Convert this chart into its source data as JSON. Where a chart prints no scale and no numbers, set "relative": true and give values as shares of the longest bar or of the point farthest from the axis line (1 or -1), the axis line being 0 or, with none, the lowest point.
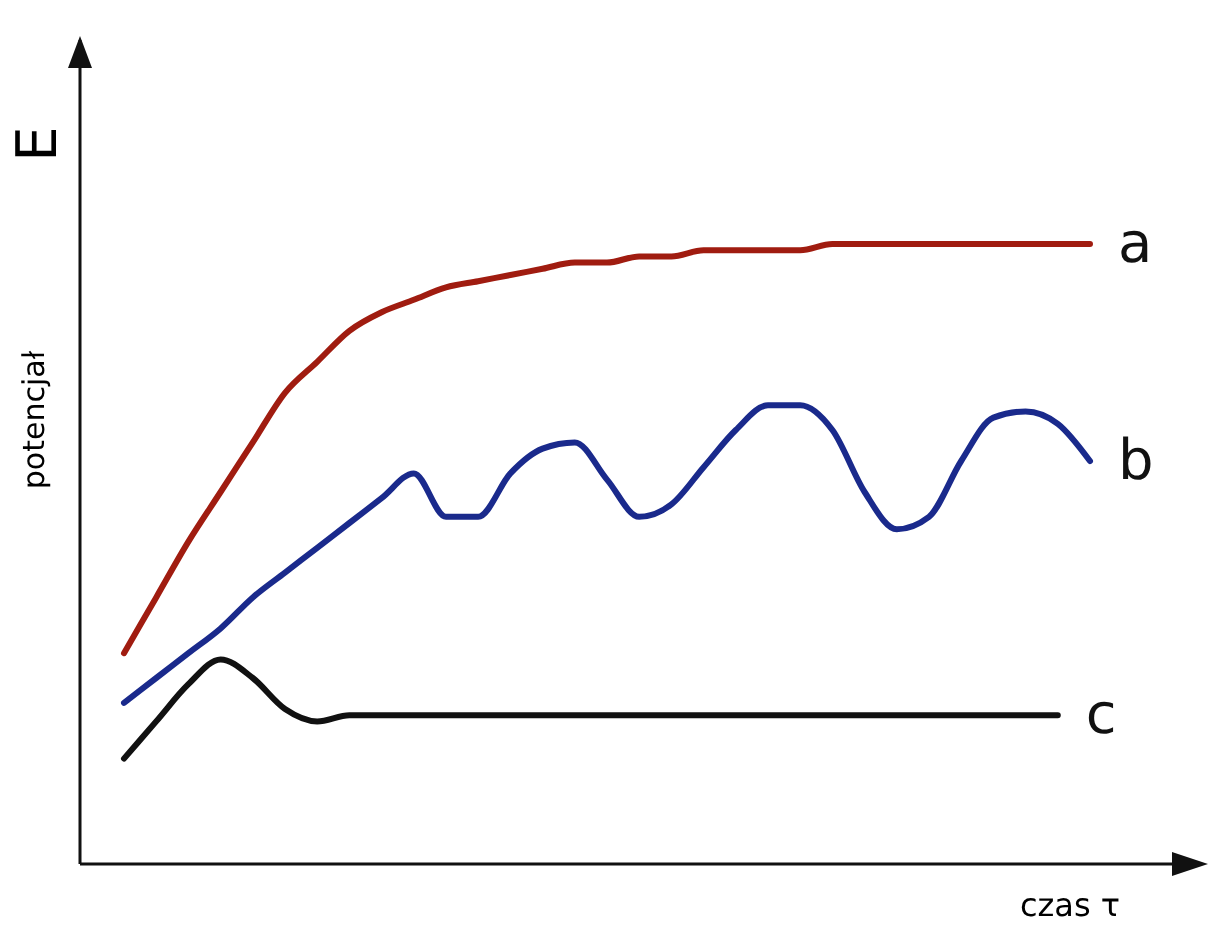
{
  "chart_data": {
    "type": "line",
    "relative": true,
    "xlabel": "czas τ",
    "ylabel": "potencjał",
    "annotations": [
      "E"
    ],
    "legend": false,
    "marker": "none",
    "line_style": "solid",
    "categories": [
      null,
      null,
      null,
      null,
      null,
      null,
      null,
      null,
      null,
      null,
      null,
      null,
      null,
      null,
      null,
      null,
      null,
      null,
      null,
      null,
      null,
      null,
      null,
      null,
      null,
      null,
      null,
      null,
      null,
      null,
      null
    ],
    "series": [
      {
        "name": "a",
        "color": "#a01c10",
        "values": [
          0.34,
          0.43,
          0.52,
          0.6,
          0.68,
          0.76,
          0.81,
          0.86,
          0.89,
          0.91,
          0.93,
          0.94,
          0.95,
          0.96,
          0.97,
          0.97,
          0.98,
          0.98,
          0.99,
          0.99,
          0.99,
          0.99,
          1,
          1,
          1,
          1,
          1,
          1,
          1,
          1,
          1
        ]
      },
      {
        "name": "b",
        "color": "#1a2a8c",
        "values": [
          0.26,
          0.3,
          0.34,
          0.38,
          0.43,
          0.47,
          0.51,
          0.55,
          0.59,
          0.63,
          0.56,
          0.56,
          0.63,
          0.67,
          0.68,
          0.62,
          0.56,
          0.58,
          0.64,
          0.7,
          0.74,
          0.74,
          0.7,
          0.6,
          0.54,
          0.56,
          0.65,
          0.72,
          0.73,
          0.71,
          0.65
        ]
      },
      {
        "name": "c",
        "color": "#111111",
        "values": [
          0.17,
          0.23,
          0.29,
          0.33,
          0.3,
          0.25,
          0.23,
          0.24,
          0.24,
          0.24,
          0.24,
          0.24,
          0.24,
          0.24,
          0.24,
          0.24,
          0.24,
          0.24,
          0.24,
          0.24,
          0.24,
          0.24,
          0.24,
          0.24,
          0.24,
          0.24,
          0.24,
          0.24,
          0.24,
          0.24,
          null
        ]
      }
    ]
  }
}
